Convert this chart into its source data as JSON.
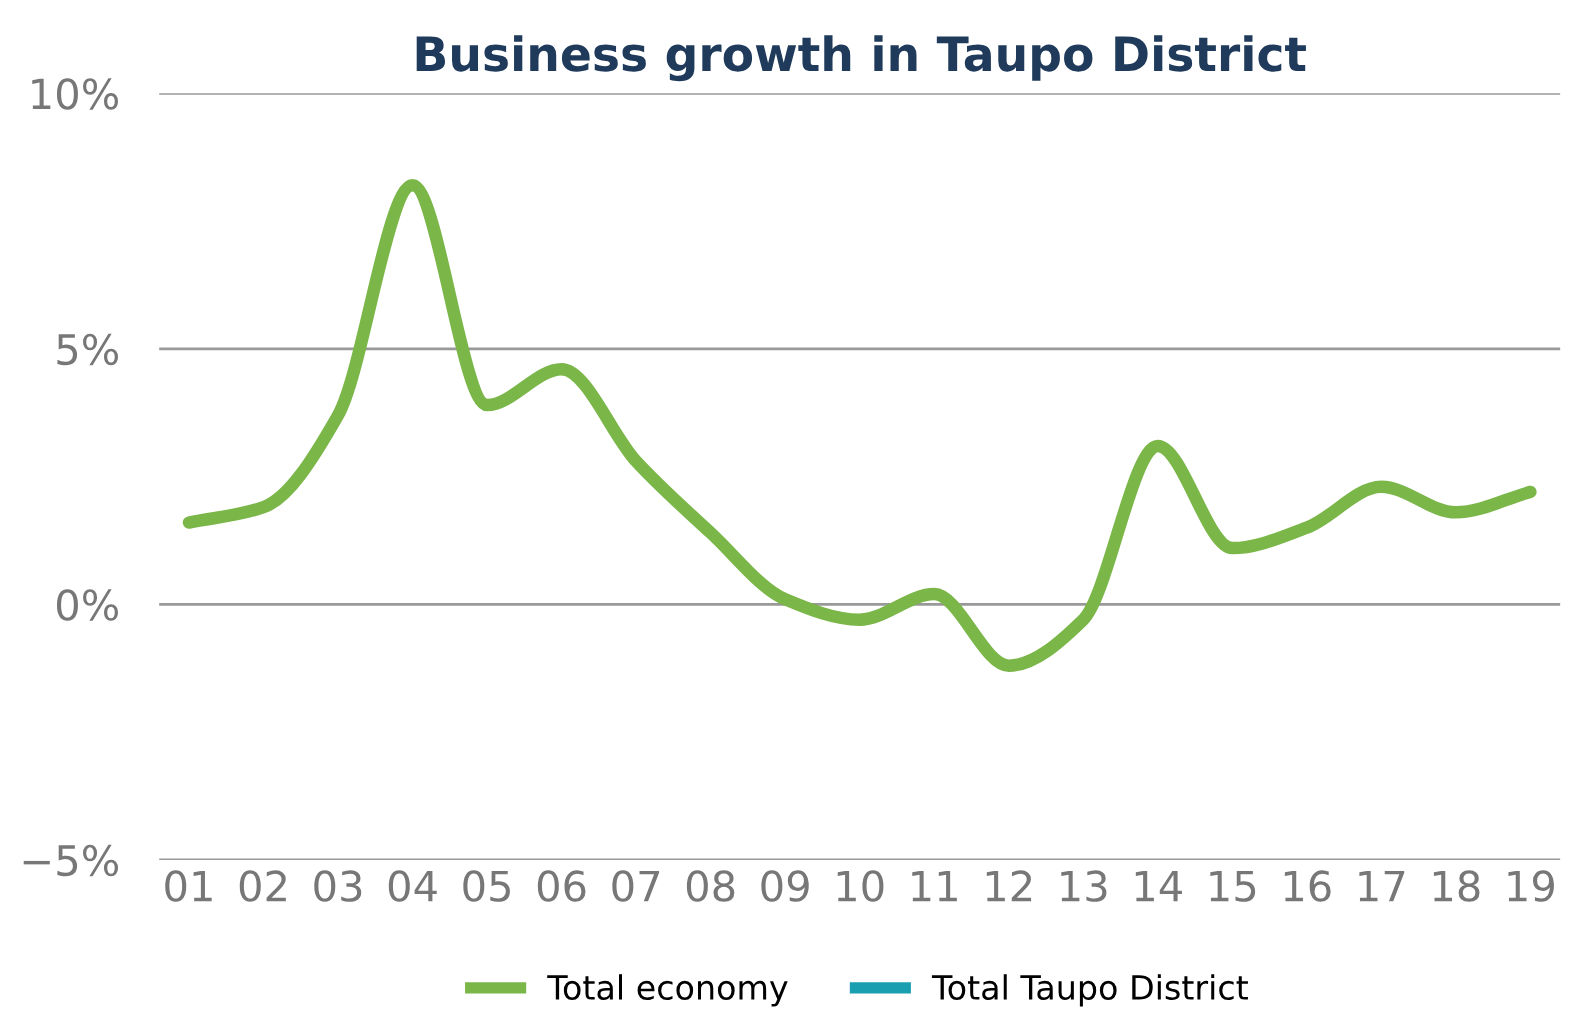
{
  "chart_data": {
    "type": "line",
    "title": "Business growth in Taupo District",
    "categories": [
      "01",
      "02",
      "03",
      "04",
      "05",
      "06",
      "07",
      "08",
      "09",
      "10",
      "11",
      "12",
      "13",
      "14",
      "15",
      "16",
      "17",
      "18",
      "19"
    ],
    "series": [
      {
        "name": "Total economy",
        "color": "#7ab648",
        "values": [
          1.6,
          1.9,
          3.7,
          8.2,
          3.9,
          4.6,
          2.8,
          1.4,
          0.1,
          -0.3,
          0.2,
          -1.2,
          -0.3,
          3.1,
          1.1,
          1.5,
          2.3,
          1.8,
          2.2
        ]
      },
      {
        "name": "Total Taupo District",
        "color": "#1a9fb0",
        "values": [
          null,
          null,
          null,
          null,
          null,
          null,
          null,
          null,
          null,
          null,
          null,
          null,
          null,
          null,
          null,
          null,
          null,
          null,
          null
        ]
      }
    ],
    "ylim": [
      -5,
      10
    ],
    "yticks": [
      {
        "value": -5,
        "label": "−5%"
      },
      {
        "value": 0,
        "label": "0%"
      },
      {
        "value": 5,
        "label": "5%"
      },
      {
        "value": 10,
        "label": "10%"
      }
    ],
    "grid": "y",
    "legend": "bottom",
    "marker": "none",
    "line_style": "solid"
  }
}
